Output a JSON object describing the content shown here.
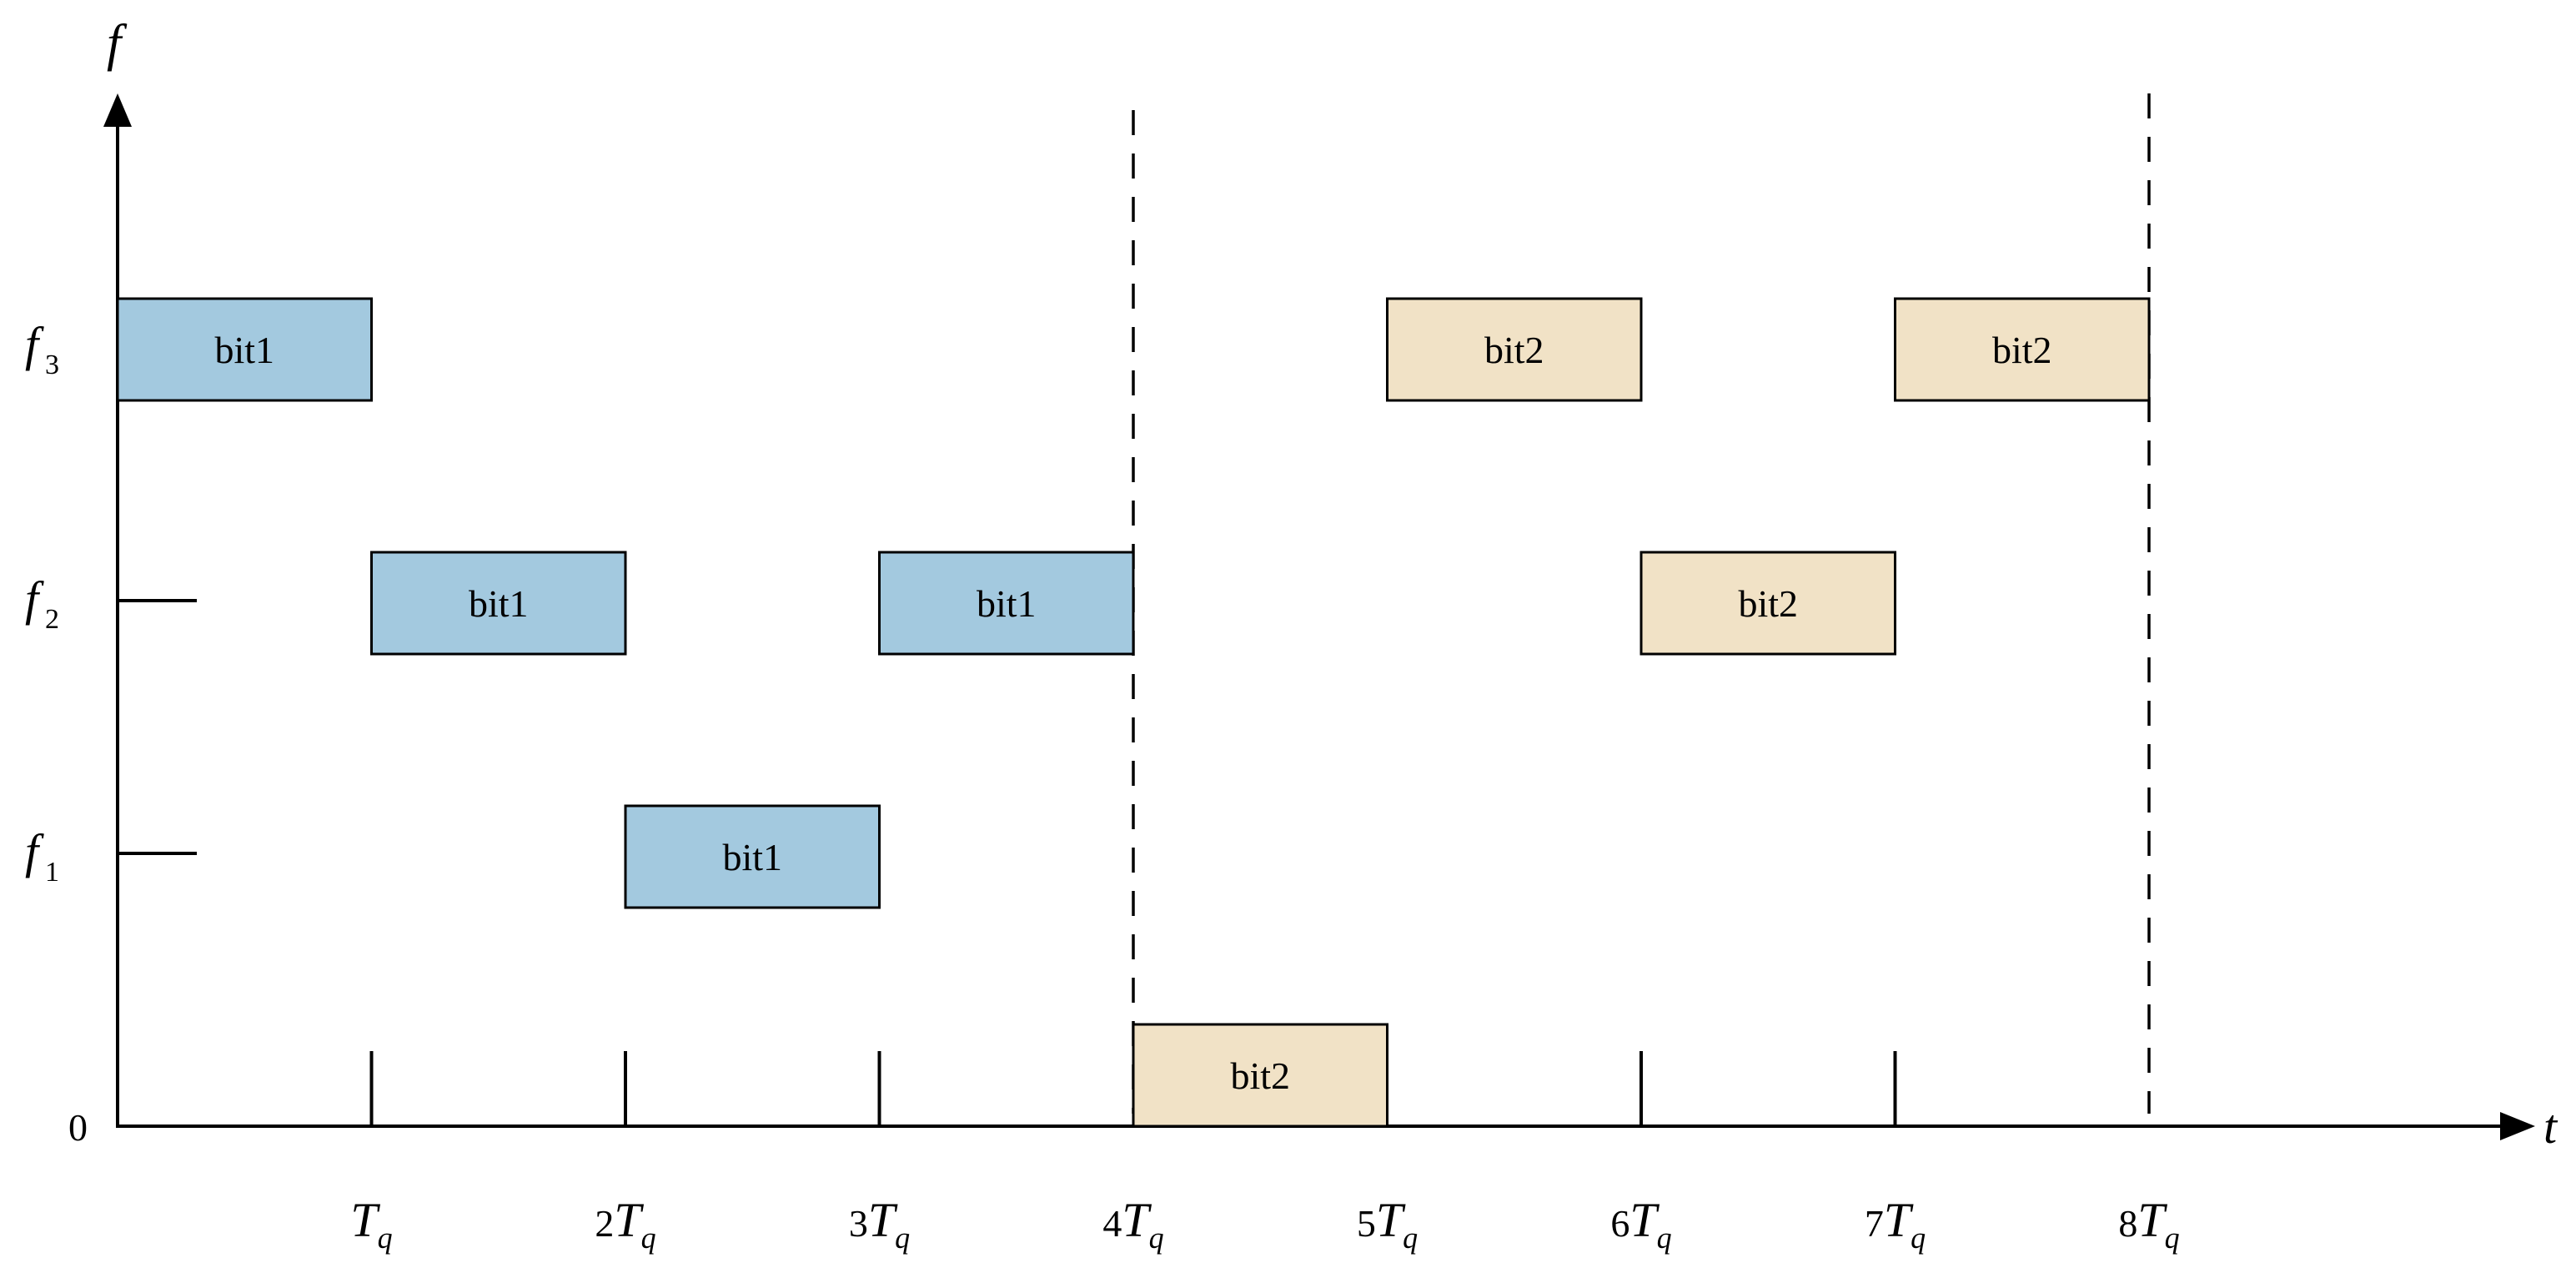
{
  "axes": {
    "y_label": "f",
    "x_label": "t",
    "origin_label": "0",
    "y_ticks": [
      {
        "base": "f",
        "sub": "3"
      },
      {
        "base": "f",
        "sub": "2"
      },
      {
        "base": "f",
        "sub": "1"
      }
    ],
    "x_ticks": [
      {
        "coef": "",
        "base": "T",
        "sub": "q"
      },
      {
        "coef": "2",
        "base": "T",
        "sub": "q"
      },
      {
        "coef": "3",
        "base": "T",
        "sub": "q"
      },
      {
        "coef": "4",
        "base": "T",
        "sub": "q"
      },
      {
        "coef": "5",
        "base": "T",
        "sub": "q"
      },
      {
        "coef": "6",
        "base": "T",
        "sub": "q"
      },
      {
        "coef": "7",
        "base": "T",
        "sub": "q"
      },
      {
        "coef": "8",
        "base": "T",
        "sub": "q"
      }
    ]
  },
  "colors": {
    "bit1": "#a3c9df",
    "bit2": "#f1e2c6"
  },
  "blocks": [
    {
      "label": "bit1",
      "group": "bit1",
      "start": 0,
      "end": 1,
      "level": "f3"
    },
    {
      "label": "bit1",
      "group": "bit1",
      "start": 1,
      "end": 2,
      "level": "f2"
    },
    {
      "label": "bit1",
      "group": "bit1",
      "start": 2,
      "end": 3,
      "level": "f1"
    },
    {
      "label": "bit1",
      "group": "bit1",
      "start": 3,
      "end": 4,
      "level": "f2"
    },
    {
      "label": "bit2",
      "group": "bit2",
      "start": 4,
      "end": 5,
      "level": "0"
    },
    {
      "label": "bit2",
      "group": "bit2",
      "start": 5,
      "end": 6,
      "level": "f3"
    },
    {
      "label": "bit2",
      "group": "bit2",
      "start": 6,
      "end": 7,
      "level": "f2"
    },
    {
      "label": "bit2",
      "group": "bit2",
      "start": 7,
      "end": 8,
      "level": "f3"
    }
  ],
  "dividers": [
    4,
    8
  ]
}
